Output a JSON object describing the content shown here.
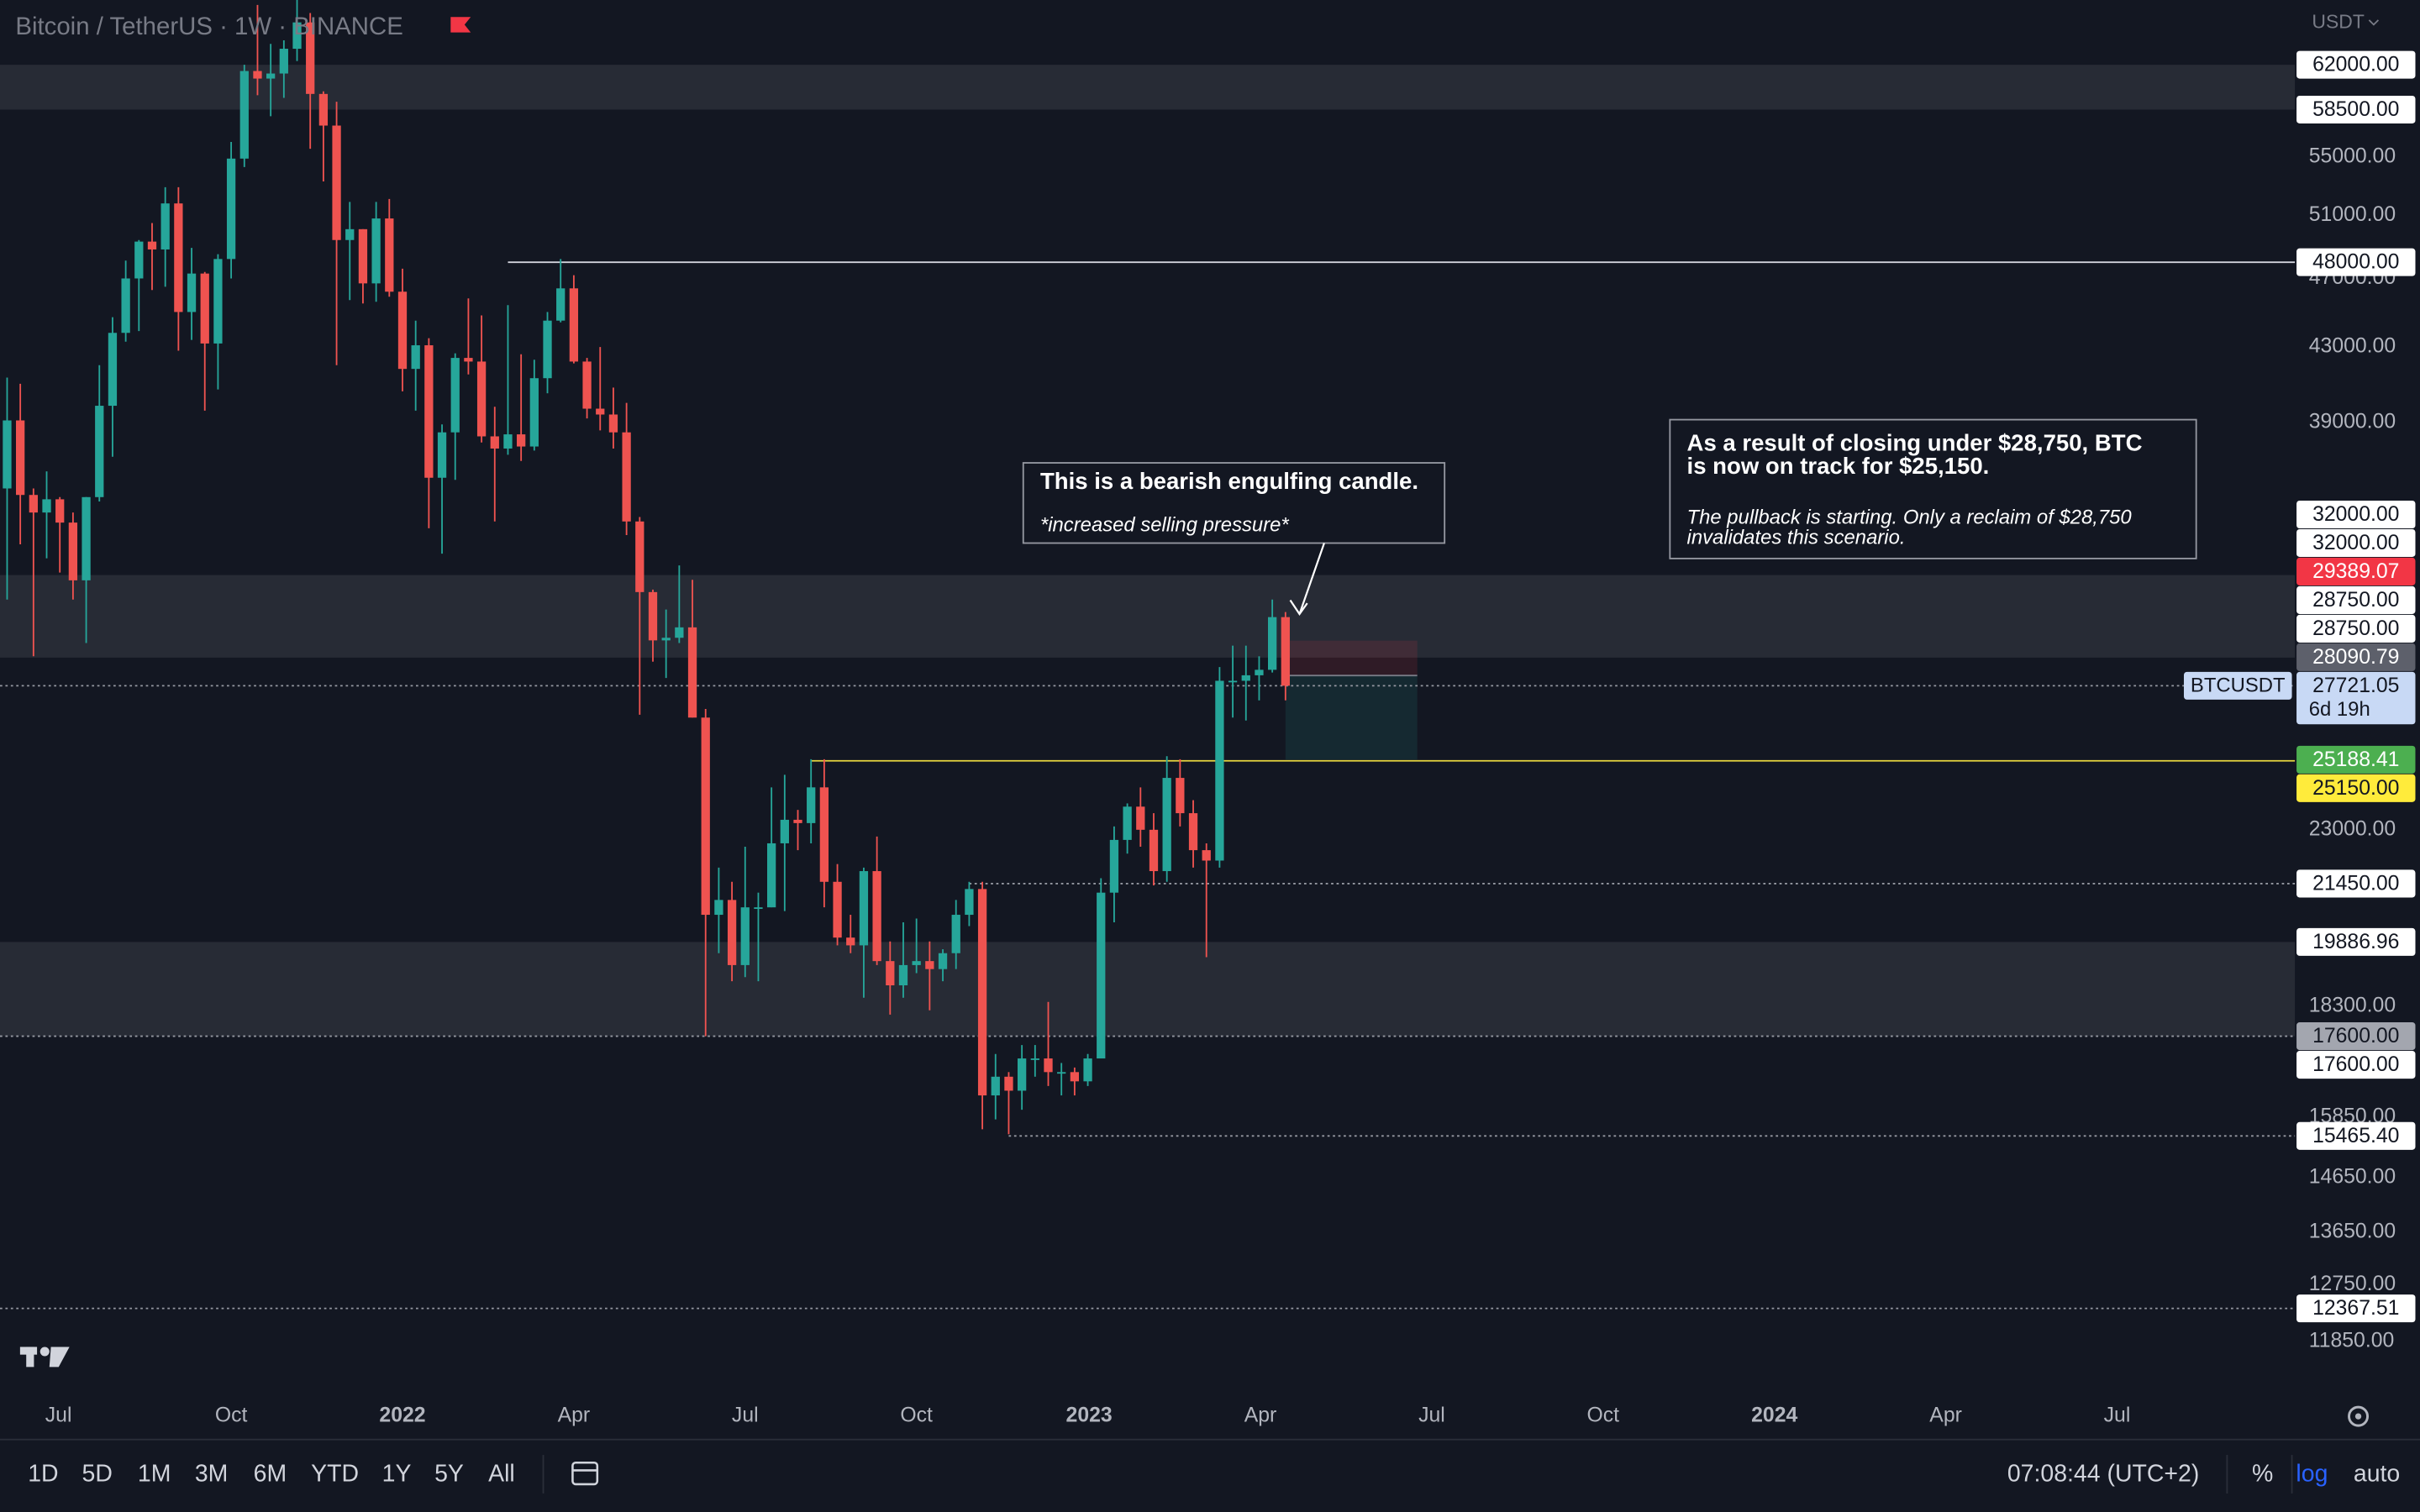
{
  "header": {
    "symbol": "Bitcoin / TetherUS · 1W · BINANCE",
    "currency": "USDT"
  },
  "chart_data": {
    "type": "candlestick",
    "log_scale": true,
    "grid": false,
    "series": [
      {
        "name": "BTCUSDT",
        "up_color": "#26a69a",
        "down_color": "#ef5350",
        "open": [
          35800,
          39100,
          35500,
          34700,
          35300,
          34250,
          31780,
          35400,
          39850,
          43800,
          47000,
          49300,
          48800,
          51800,
          45000,
          47300,
          43200,
          48200,
          54900,
          61500,
          60900,
          61300,
          63300,
          65500,
          59700,
          57300,
          49400,
          50100,
          46700,
          50800,
          46200,
          41800,
          43100,
          36300,
          38500,
          42400,
          42200,
          38300,
          37700,
          38400,
          37800,
          41300,
          44500,
          46400,
          42200,
          39700,
          39400,
          38500,
          34300,
          31300,
          29400,
          29500,
          29900,
          26600,
          20600,
          21000,
          19300,
          20800,
          20800,
          22600,
          23300,
          23200,
          24300,
          21500,
          20000,
          19800,
          21800,
          19400,
          18800,
          19300,
          19400,
          19200,
          19600,
          20600,
          21300,
          16300,
          16700,
          16400,
          17100,
          17100,
          16800,
          16800,
          16600,
          17100,
          21200,
          22700,
          23700,
          23000,
          21800,
          24600,
          23500,
          22400,
          22100,
          27900,
          27900,
          28100,
          28300,
          30300
        ],
        "high": [
          41330,
          41000,
          35800,
          36600,
          35400,
          34700,
          35400,
          42000,
          44700,
          48100,
          49400,
          50500,
          52900,
          52900,
          48900,
          47400,
          48500,
          56100,
          62000,
          67000,
          63700,
          64000,
          69000,
          66300,
          59900,
          59100,
          51900,
          50100,
          51900,
          52100,
          47600,
          44500,
          43500,
          38900,
          42650,
          45800,
          44800,
          39800,
          45400,
          42600,
          42300,
          45000,
          48200,
          47200,
          42400,
          43000,
          40800,
          40000,
          34500,
          31400,
          30600,
          32400,
          31800,
          26900,
          21900,
          21500,
          22500,
          21200,
          24300,
          24700,
          23600,
          25200,
          25200,
          22000,
          20600,
          21900,
          22800,
          19900,
          20400,
          20500,
          19900,
          19700,
          21000,
          21500,
          21500,
          17200,
          16800,
          17400,
          17400,
          18400,
          17000,
          16900,
          17200,
          21600,
          23100,
          23800,
          24300,
          23500,
          25300,
          25200,
          23900,
          22600,
          28400,
          29200,
          29200,
          28800,
          31000,
          30500
        ],
        "low": [
          31000,
          33300,
          28800,
          32700,
          32100,
          31000,
          29300,
          35200,
          37300,
          43300,
          43900,
          46300,
          46500,
          42800,
          43400,
          39600,
          40700,
          47000,
          54300,
          59600,
          58000,
          59400,
          62300,
          55600,
          53300,
          42000,
          45700,
          45500,
          45600,
          45900,
          40600,
          39600,
          34000,
          32900,
          36200,
          41500,
          38000,
          34300,
          37400,
          37100,
          37600,
          40500,
          44400,
          42100,
          39200,
          38600,
          37700,
          33700,
          26700,
          28600,
          28000,
          29300,
          26600,
          17600,
          19600,
          18900,
          19000,
          18900,
          20800,
          20700,
          22400,
          22600,
          20800,
          19800,
          19600,
          18500,
          19300,
          18100,
          18500,
          19100,
          18200,
          18900,
          19200,
          20300,
          15600,
          15800,
          15500,
          16000,
          16700,
          16500,
          16300,
          16300,
          16500,
          17100,
          20400,
          22300,
          22500,
          21400,
          21500,
          23100,
          21900,
          19500,
          21900,
          26600,
          26500,
          27200,
          28200,
          27200
        ],
        "close": [
          39100,
          35500,
          34700,
          35300,
          34250,
          31780,
          35400,
          39850,
          43800,
          47000,
          49300,
          48800,
          51800,
          45000,
          47300,
          43200,
          48200,
          54900,
          61500,
          60900,
          61300,
          63300,
          65500,
          59700,
          57300,
          49400,
          50100,
          46700,
          50800,
          46200,
          41800,
          43100,
          36300,
          38500,
          42400,
          42200,
          38300,
          37700,
          38400,
          37800,
          41300,
          44500,
          46400,
          42200,
          39700,
          39400,
          38500,
          34300,
          31300,
          29400,
          29500,
          29900,
          26600,
          20600,
          21000,
          19300,
          20800,
          20800,
          22600,
          23300,
          23200,
          24300,
          21500,
          20000,
          19800,
          21800,
          19400,
          18800,
          19300,
          19400,
          19200,
          19600,
          20600,
          21300,
          16300,
          16700,
          16400,
          17100,
          17100,
          16800,
          16800,
          16600,
          17100,
          21200,
          22700,
          23700,
          23000,
          21800,
          24600,
          23500,
          22400,
          22100,
          27900,
          27900,
          28100,
          28300,
          30300,
          27721.05
        ]
      }
    ],
    "xlim": [
      -0.54,
      173.6
    ],
    "xticks": [
      {
        "value": 3.9,
        "label": "Jul"
      },
      {
        "value": 17.0,
        "label": "Oct"
      },
      {
        "value": 30.0,
        "label": "2022"
      },
      {
        "value": 43.0,
        "label": "Apr"
      },
      {
        "value": 56.0,
        "label": "Jul"
      },
      {
        "value": 69.0,
        "label": "Oct"
      },
      {
        "value": 82.1,
        "label": "2023"
      },
      {
        "value": 95.1,
        "label": "Apr"
      },
      {
        "value": 108.1,
        "label": "Jul"
      },
      {
        "value": 121.1,
        "label": "Oct"
      },
      {
        "value": 134.1,
        "label": "2024"
      },
      {
        "value": 147.1,
        "label": "Apr"
      },
      {
        "value": 160.1,
        "label": "Jul"
      }
    ],
    "ylim": [
      11036,
      67430
    ],
    "yticks": [
      {
        "value": 55000,
        "label": "55000.00"
      },
      {
        "value": 51000,
        "label": "51000.00"
      },
      {
        "value": 47000,
        "label": "47000.00"
      },
      {
        "value": 43000,
        "label": "43000.00"
      },
      {
        "value": 39000,
        "label": "39000.00"
      },
      {
        "value": 23000,
        "label": "23000.00"
      },
      {
        "value": 18300,
        "label": "18300.00"
      },
      {
        "value": 15850,
        "label": "15850.00"
      },
      {
        "value": 14650,
        "label": "14650.00"
      },
      {
        "value": 13650,
        "label": "13650.00"
      },
      {
        "value": 12750,
        "label": "12750.00"
      },
      {
        "value": 11850,
        "label": "11850.00"
      }
    ],
    "zones": [
      {
        "low": 58500,
        "high": 62000
      },
      {
        "low": 28750,
        "high": 32000
      },
      {
        "low": 17600,
        "high": 19886.96
      }
    ],
    "lines": [
      {
        "value": 48000,
        "from": 38,
        "color": "#d1d4dc",
        "style": "solid"
      },
      {
        "value": 25150,
        "from": 61,
        "color": "#e8d63f",
        "style": "solid"
      },
      {
        "value": 21450,
        "from": 73,
        "color": "#9598a1",
        "style": "dotted"
      },
      {
        "value": 15465.4,
        "from": 76,
        "color": "#9598a1",
        "style": "dotted"
      },
      {
        "value": 17600,
        "color": "#9598a1",
        "style": "dotted"
      },
      {
        "value": 12367.51,
        "color": "#9598a1",
        "style": "dotted"
      },
      {
        "value": 27721.05,
        "color": "#9598a1",
        "style": "dotted"
      }
    ],
    "position": {
      "from": 97,
      "to": 107,
      "entry": 28090.79,
      "stop": 29389.07,
      "target": 25188.41
    },
    "price_labels": [
      {
        "value": 62000,
        "label": "62000.00",
        "bg": "#ffffff",
        "fg": "#131722"
      },
      {
        "value": 58500,
        "label": "58500.00",
        "bg": "#ffffff",
        "fg": "#131722"
      },
      {
        "value": 48000,
        "label": "48000.00",
        "bg": "#ffffff",
        "fg": "#131722"
      },
      {
        "value": 32000,
        "label": "32000.00",
        "bg": "#ffffff",
        "fg": "#131722"
      },
      {
        "value": 32000,
        "label": "32000.00",
        "bg": "#ffffff",
        "fg": "#131722"
      },
      {
        "value": 29389.07,
        "label": "29389.07",
        "bg": "#f23645",
        "fg": "#ffffff"
      },
      {
        "value": 28750,
        "label": "28750.00",
        "bg": "#ffffff",
        "fg": "#131722"
      },
      {
        "value": 28750,
        "label": "28750.00",
        "bg": "#ffffff",
        "fg": "#131722"
      },
      {
        "value": 28090.79,
        "label": "28090.79",
        "bg": "#5d606b",
        "fg": "#ffffff"
      },
      {
        "value": 27721.05,
        "label": "27721.05",
        "bg": "#c8d9f5",
        "fg": "#131722",
        "countdown": "6d 19h"
      },
      {
        "value": 25188.41,
        "label": "25188.41",
        "bg": "#4caf50",
        "fg": "#ffffff"
      },
      {
        "value": 25150,
        "label": "25150.00",
        "bg": "#ffeb3b",
        "fg": "#131722"
      },
      {
        "value": 21450,
        "label": "21450.00",
        "bg": "#ffffff",
        "fg": "#131722"
      },
      {
        "value": 19886.96,
        "label": "19886.96",
        "bg": "#ffffff",
        "fg": "#131722"
      },
      {
        "value": 17600,
        "label": "17600.00",
        "bg": "#a3a6af",
        "fg": "#131722"
      },
      {
        "value": 17600,
        "label": "17600.00",
        "bg": "#ffffff",
        "fg": "#131722"
      },
      {
        "value": 15465.4,
        "label": "15465.40",
        "bg": "#ffffff",
        "fg": "#131722"
      },
      {
        "value": 12367.51,
        "label": "12367.51",
        "bg": "#ffffff",
        "fg": "#131722"
      }
    ],
    "symbol_tag": "BTCUSDT",
    "annotations": [
      {
        "title": [
          "This is a bearish engulfing candle."
        ],
        "note": [
          "*increased selling pressure*"
        ]
      },
      {
        "title": [
          "As a result of closing under $28,750, BTC",
          "is now on track for $25,150."
        ],
        "note": [
          "The pullback is starting. Only a reclaim of $28,750",
          "invalidates this scenario."
        ]
      }
    ]
  },
  "toolbar": {
    "ranges": [
      "1D",
      "5D",
      "1M",
      "3M",
      "6M",
      "YTD",
      "1Y",
      "5Y",
      "All"
    ],
    "clock": "07:08:44 (UTC+2)",
    "options": [
      "%",
      "log",
      "auto"
    ]
  }
}
